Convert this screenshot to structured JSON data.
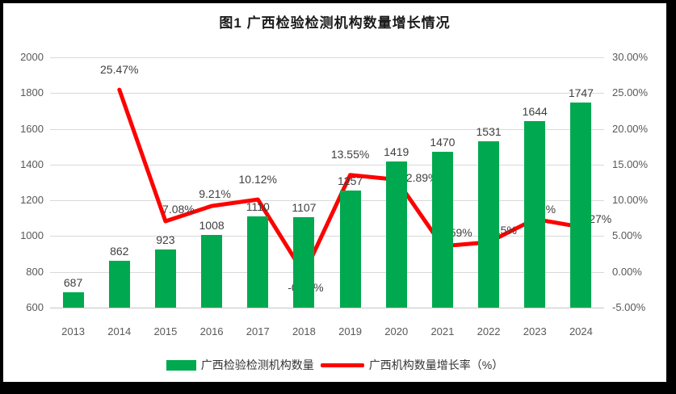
{
  "window": {
    "background": "#000000",
    "chart_background": "#ffffff"
  },
  "title": "图1 广西检验检测机构数量增长情况",
  "legend": {
    "bar_label": "广西检验检测机构数量",
    "line_label": "广西机构数量增长率（%）"
  },
  "colors": {
    "bar": "#00a94f",
    "line": "#fe0000",
    "gridline": "#d9d9d9",
    "axis_text": "#595959",
    "data_label_text": "#3f3f3f"
  },
  "chart_data": {
    "type": "bar+line combo",
    "title": "图1 广西检验检测机构数量增长情况",
    "categories": [
      "2013",
      "2014",
      "2015",
      "2016",
      "2017",
      "2018",
      "2019",
      "2020",
      "2021",
      "2022",
      "2023",
      "2024"
    ],
    "series": [
      {
        "name": "广西检验检测机构数量",
        "type": "bar",
        "axis": "left",
        "color": "#00a94f",
        "values": [
          687,
          862,
          923,
          1008,
          1110,
          1107,
          1257,
          1419,
          1470,
          1531,
          1644,
          1747
        ]
      },
      {
        "name": "广西机构数量增长率（%）",
        "type": "line",
        "axis": "right",
        "color": "#fe0000",
        "values": [
          null,
          25.47,
          7.08,
          9.21,
          10.12,
          -0.27,
          13.55,
          12.89,
          3.59,
          4.15,
          7.38,
          6.27
        ],
        "point_labels": [
          "",
          "25.47%",
          "7.08%",
          "9.21%",
          "10.12%",
          "-0.27%",
          "13.55%",
          "12.89%",
          "3.59%",
          "4.15%",
          "7.38%",
          "6.27%"
        ]
      }
    ],
    "left_axis": {
      "min": 600,
      "max": 2000,
      "step": 200,
      "tick_labels": [
        "2000",
        "1800",
        "1600",
        "1400",
        "1200",
        "1000",
        "800",
        "600"
      ]
    },
    "right_axis": {
      "min": -5,
      "max": 30,
      "step": 5,
      "tick_labels": [
        "30.00%",
        "25.00%",
        "20.00%",
        "15.00%",
        "10.00%",
        "5.00%",
        "0.00%",
        "-5.00%"
      ]
    },
    "grid": true,
    "legend_position": "bottom"
  }
}
